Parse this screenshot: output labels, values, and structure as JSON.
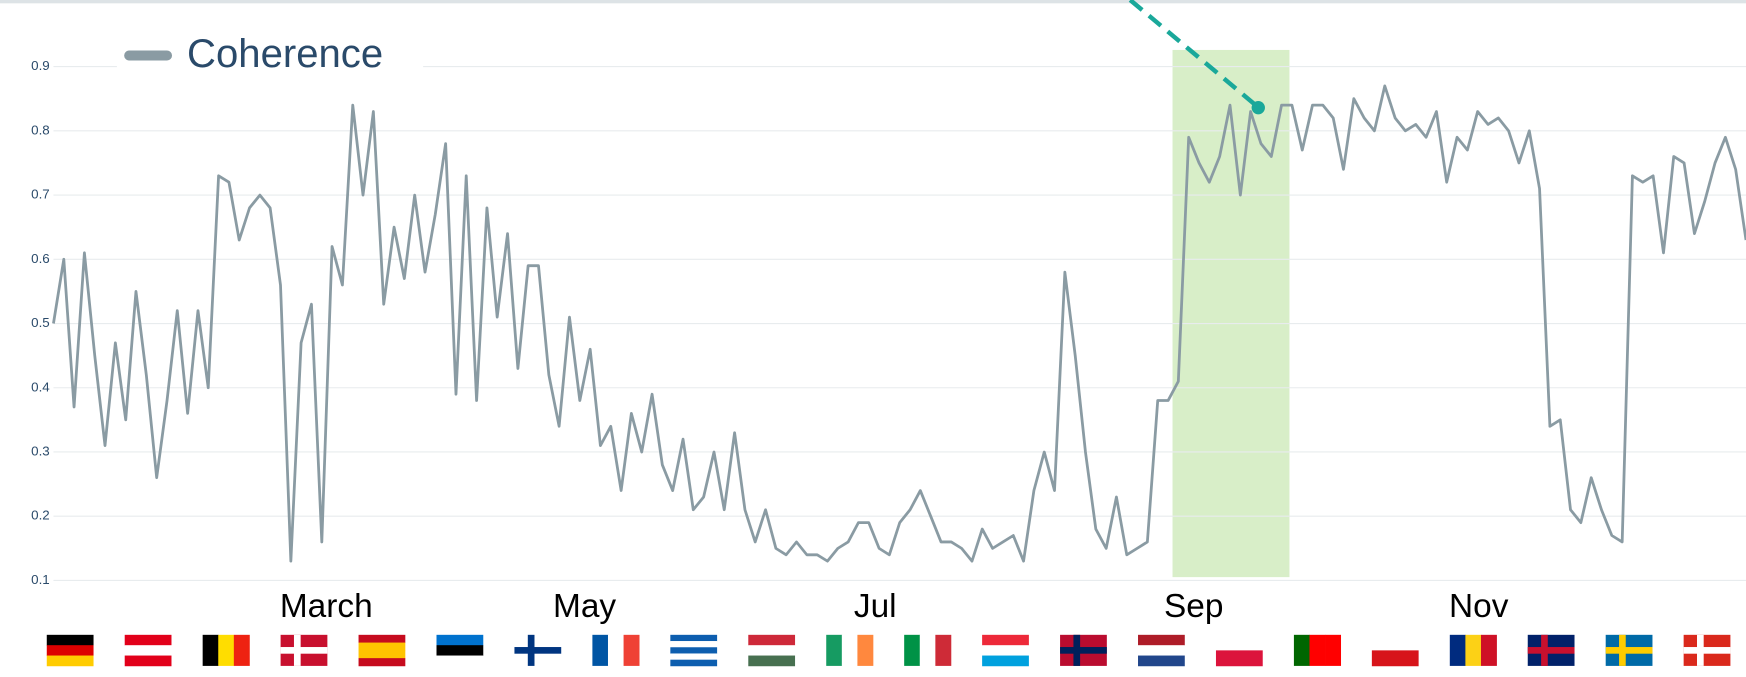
{
  "chart_data": {
    "type": "line",
    "series": [
      {
        "name": "Coherence",
        "color": "#8a9ba3",
        "values": [
          0.5,
          0.6,
          0.37,
          0.61,
          0.45,
          0.31,
          0.47,
          0.35,
          0.55,
          0.42,
          0.26,
          0.38,
          0.52,
          0.36,
          0.52,
          0.4,
          0.73,
          0.72,
          0.63,
          0.68,
          0.7,
          0.68,
          0.56,
          0.13,
          0.47,
          0.53,
          0.16,
          0.62,
          0.56,
          0.84,
          0.7,
          0.83,
          0.53,
          0.65,
          0.57,
          0.7,
          0.58,
          0.67,
          0.78,
          0.39,
          0.73,
          0.38,
          0.68,
          0.51,
          0.64,
          0.43,
          0.59,
          0.59,
          0.42,
          0.34,
          0.51,
          0.38,
          0.46,
          0.31,
          0.34,
          0.24,
          0.36,
          0.3,
          0.39,
          0.28,
          0.24,
          0.32,
          0.21,
          0.23,
          0.3,
          0.21,
          0.33,
          0.21,
          0.16,
          0.21,
          0.15,
          0.14,
          0.16,
          0.14,
          0.14,
          0.13,
          0.15,
          0.16,
          0.19,
          0.19,
          0.15,
          0.14,
          0.19,
          0.21,
          0.24,
          0.2,
          0.16,
          0.16,
          0.15,
          0.13,
          0.18,
          0.15,
          0.16,
          0.17,
          0.13,
          0.24,
          0.3,
          0.24,
          0.58,
          0.45,
          0.3,
          0.18,
          0.15,
          0.23,
          0.14,
          0.15,
          0.16,
          0.38,
          0.38,
          0.41,
          0.79,
          0.75,
          0.72,
          0.76,
          0.84,
          0.7,
          0.83,
          0.78,
          0.76,
          0.84,
          0.84,
          0.77,
          0.84,
          0.84,
          0.82,
          0.74,
          0.85,
          0.82,
          0.8,
          0.87,
          0.82,
          0.8,
          0.81,
          0.79,
          0.83,
          0.72,
          0.79,
          0.77,
          0.83,
          0.81,
          0.82,
          0.8,
          0.75,
          0.8,
          0.71,
          0.34,
          0.35,
          0.21,
          0.19,
          0.26,
          0.21,
          0.17,
          0.16,
          0.73,
          0.72,
          0.73,
          0.61,
          0.76,
          0.75,
          0.64,
          0.69,
          0.75,
          0.79,
          0.74,
          0.63
        ]
      }
    ],
    "x_labels": [
      "March",
      "May",
      "Jul",
      "Sep",
      "Nov"
    ],
    "ylim": [
      0.1,
      0.9
    ],
    "yticks": [
      0.1,
      0.2,
      0.3,
      0.4,
      0.5,
      0.6,
      0.7,
      0.8,
      0.9
    ],
    "grid": true
  }
}
